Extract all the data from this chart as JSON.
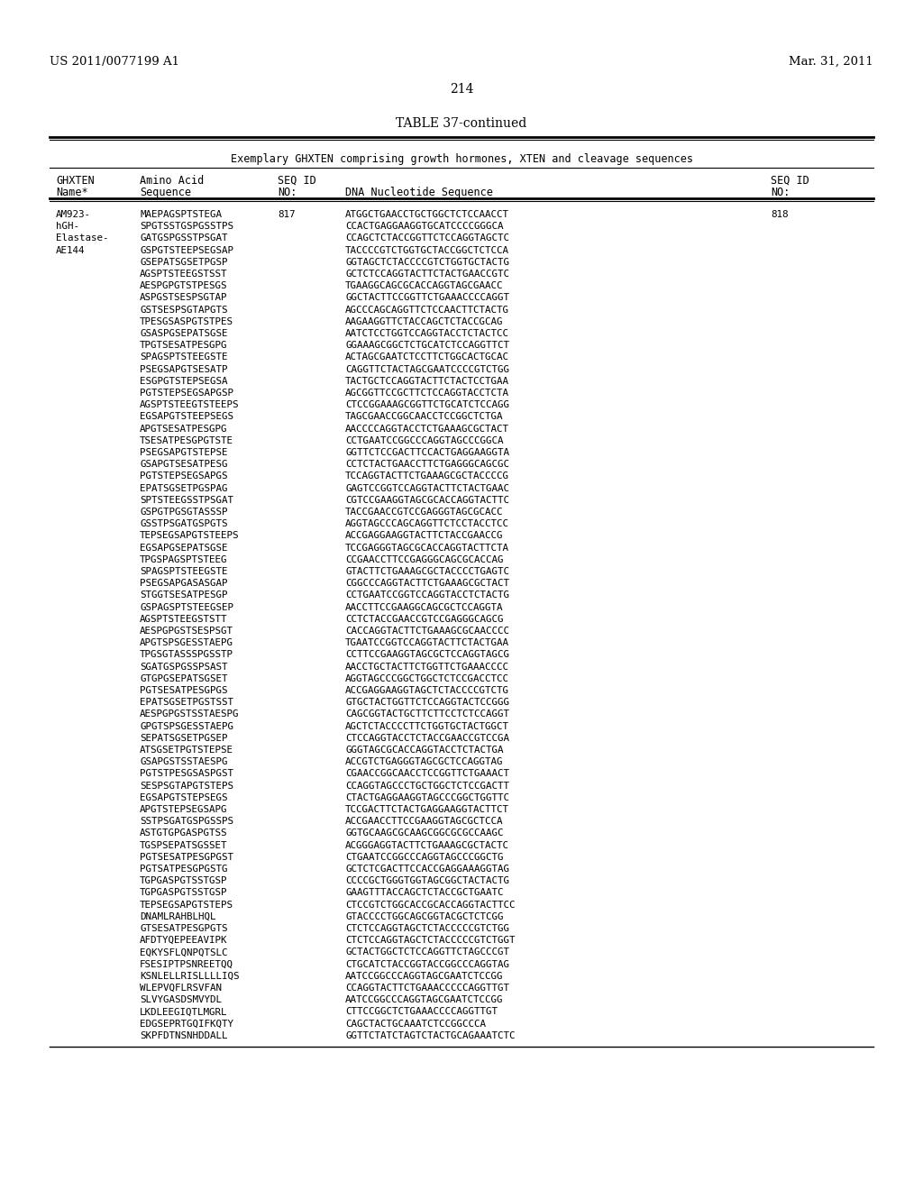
{
  "header_left": "US 2011/0077199 A1",
  "header_right": "Mar. 31, 2011",
  "page_number": "214",
  "table_title": "TABLE 37-continued",
  "table_subtitle": "Exemplary GHXTEN comprising growth hormones, XTEN and cleavage sequences",
  "col1_header1": "GHXTEN",
  "col1_header2": "Name*",
  "col2_header1": "Amino Acid",
  "col2_header2": "Sequence",
  "col3_header1": "SEQ ID",
  "col3_header2": "NO:",
  "col4_header1": "",
  "col4_header2": "DNA Nucleotide Sequence",
  "col5_header1": "SEQ ID",
  "col5_header2": "NO:",
  "entry_name_parts": [
    "AM923-",
    "hGH-",
    "Elastase-",
    "AE144"
  ],
  "seq_id_1": "817",
  "seq_id_2": "818",
  "rows": [
    [
      "MAEPAGSPTSTEGA",
      "817",
      "ATGGCTGAACCTGCTGGCTCTCCAACCT",
      "818"
    ],
    [
      "SPGTSSTGSPGSSTPS",
      "",
      "CCACTGAGGAAGGTGCATCCCCGGGCA",
      ""
    ],
    [
      "GATGSPGSSTPSGAT",
      "",
      "CCAGCTCTACCGGTTCTCCAGGTAGCTC",
      ""
    ],
    [
      "GSPGTSTEEPSEGSAP",
      "",
      "TACCCCGTCTGGTGCTACCGGCTCTCCA",
      ""
    ],
    [
      "GSEPATSGSETPGSP",
      "",
      "GGTAGCTCTACCCCGTCTGGTGCTACTG",
      ""
    ],
    [
      "AGSPTSTEEGSTSST",
      "",
      "GCTCTCCAGGTACTTCTACTGAACCGTC",
      ""
    ],
    [
      "AESPGPGTSTPESGS",
      "",
      "TGAAGGCAGCGCACCAGGTAGCGAACC",
      ""
    ],
    [
      "ASPGSTSESPSGTAP",
      "",
      "GGCTACTTCCGGTTCTGAAACCCCAGGT",
      ""
    ],
    [
      "GSTSESPSGTAPGTS",
      "",
      "AGCCCAGCAGGTTCTCCAACTTCTACTG",
      ""
    ],
    [
      "TPESGSASPGTSTPES",
      "",
      "AAGAAGGTTCTACCAGCTCTACCGCAG",
      ""
    ],
    [
      "GSASPGSEPATSGSE",
      "",
      "AATCTCCTGGTCCAGGTACCTCTACTCC",
      ""
    ],
    [
      "TPGTSESATPESGPG",
      "",
      "GGAAAGCGGCTCTGCATCTCCAGGTTCT",
      ""
    ],
    [
      "SPAGSPTSTEEGSTE",
      "",
      "ACTAGCGAATCTCCTTCTGGCACTGCAC",
      ""
    ],
    [
      "PSEGSAPGTSESATP",
      "",
      "CAGGTTCTACTAGCGAATCCCCGTCTGG",
      ""
    ],
    [
      "ESGPGTSTEPSEGSA",
      "",
      "TACTGCTCCAGGTACTTCTACTCCTGAA",
      ""
    ],
    [
      "PGTSTEPSEGSAPGSP",
      "",
      "AGCGGTTCCGCTTCTCCAGGTACCTCTA",
      ""
    ],
    [
      "AGSPTSTEEGTSTEEPS",
      "",
      "CTCCGGAAAGCGGTTCTGCATCTCCAGG",
      ""
    ],
    [
      "EGSAPGTSTEEPSEGS",
      "",
      "TAGCGAACCGGCAACCTCCGGCTCTGA",
      ""
    ],
    [
      "APGTSESATPESGPG",
      "",
      "AACCCCAGGTACCTCTGAAAGCGCTACT",
      ""
    ],
    [
      "TSESATPESGPGTSTE",
      "",
      "CCTGAATCCGGCCCAGGTAGCCCGGCA",
      ""
    ],
    [
      "PSEGSAPGTSTEPSE",
      "",
      "GGTTCTCCGACTTCCACTGAGGAAGGTA",
      ""
    ],
    [
      "GSAPGTSESATPESG",
      "",
      "CCTCTACTGAACCTTCTGAGGGCAGCGC",
      ""
    ],
    [
      "PGTSTEPSEGSAPGS",
      "",
      "TCCAGGTACTTCTGAAAGCGCTACCCCG",
      ""
    ],
    [
      "EPATSGSETPGSPAG",
      "",
      "GAGTCCGGTCCAGGTACTTCTACTGAAC",
      ""
    ],
    [
      "SPTSTEEGSSTPSGAT",
      "",
      "CGTCCGAAGGTAGCGCACCAGGTACTTC",
      ""
    ],
    [
      "GSPGTPGSGTASSSP",
      "",
      "TACCGAACCGTCCGAGGGTAGCGCACC",
      ""
    ],
    [
      "GSSTPSGATGSPGTS",
      "",
      "AGGTAGCCCAGCAGGTTCTCCTACCTCC",
      ""
    ],
    [
      "TEPSEGSAPGTSTEEPS",
      "",
      "ACCGAGGAAGGTACTTCTACCGAACCG",
      ""
    ],
    [
      "EGSAPGSEPATSGSE",
      "",
      "TCCGAGGGTAGCGCACCAGGTACTTCTA",
      ""
    ],
    [
      "TPGSPAGSPTSTEEG",
      "",
      "CCGAACCTTCCGAGGGCAGCGCACCAG",
      ""
    ],
    [
      "SPAGSPTSTEEGSTE",
      "",
      "GTACTTCTGAAAGCGCTACCCCTGAGTC",
      ""
    ],
    [
      "PSEGSAPGASASGAP",
      "",
      "CGGCCCAGGTACTTCTGAAAGCGCTACT",
      ""
    ],
    [
      "STGGTSESATPESGP",
      "",
      "CCTGAATCCGGTCCAGGTACCTCTACTG",
      ""
    ],
    [
      "GSPAGSPTSTEEGSEP",
      "",
      "AACCTTCCGAAGGCAGCGCTCCAGGTA",
      ""
    ],
    [
      "AGSPTSTEEGSTSTT",
      "",
      "CCTCTACCGAACCGTCCGAGGGCAGCG",
      ""
    ],
    [
      "AESPGPGSTSESPSGT",
      "",
      "CACCAGGTACTTCTGAAAGCGCAACCCC",
      ""
    ],
    [
      "APGTSPSGESSTAEPG",
      "",
      "TGAATCCGGTCCAGGTACTTCTACTGAA",
      ""
    ],
    [
      "TPGSGTASSSPGSSTP",
      "",
      "CCTTCCGAAGGTAGCGCTCCAGGTAGCG",
      ""
    ],
    [
      "SGATGSPGSSPSAST",
      "",
      "AACCTGCTACTTCTGGTTCTGAAACCCC",
      ""
    ],
    [
      "GTGPGSEPATSGSET",
      "",
      "AGGTAGCCCGGCTGGCTCTCCGACCTCC",
      ""
    ],
    [
      "PGTSESATPESGPGS",
      "",
      "ACCGAGGAAGGTAGCTCTACCCCGTCTG",
      ""
    ],
    [
      "EPATSGSETPGSTSST",
      "",
      "GTGCTACTGGTTCTCCAGGTACTCCGGG",
      ""
    ],
    [
      "AESPGPGSTSSTAESPG",
      "",
      "CAGCGGTACTGCTTCTTCCTCTCCAGGT",
      ""
    ],
    [
      "GPGTSPSGESSTAEPG",
      "",
      "AGCTCTACCCCTTCTGGTGCTACTGGCT",
      ""
    ],
    [
      "SEPATSGSETPGSEP",
      "",
      "CTCCAGGTACCTCTACCGAACCGTCCGA",
      ""
    ],
    [
      "ATSGSETPGTSTEPSE",
      "",
      "GGGTAGCGCACCAGGTACCTCTACTGA",
      ""
    ],
    [
      "GSAPGSTSSTAESPG",
      "",
      "ACCGTCTGAGGGTAGCGCTCCAGGTAG",
      ""
    ],
    [
      "PGTSTPESGSASPGST",
      "",
      "CGAACCGGCAACCTCCGGTTCTGAAACT",
      ""
    ],
    [
      "SESPSGTAPGTSTEPS",
      "",
      "CCAGGTAGCCCTGCTGGCTCTCCGACTT",
      ""
    ],
    [
      "EGSAPGTSTEPSEGS",
      "",
      "CTACTGAGGAAGGTAGCCCGGCTGGTTC",
      ""
    ],
    [
      "APGTSTEPSEGSAPG",
      "",
      "TCCGACTTCTACTGAGGAAGGTACTTCT",
      ""
    ],
    [
      "SSTPSGATGSPGSSPS",
      "",
      "ACCGAACCTTCCGAAGGTAGCGCTCCA",
      ""
    ],
    [
      "ASTGTGPGASPGTSS",
      "",
      "GGTGCAAGCGCAAGCGGCGCGCCAAGC",
      ""
    ],
    [
      "TGSPSEPATSGSSET",
      "",
      "ACGGGAGGTACTTCTGAAAGCGCTACTC",
      ""
    ],
    [
      "PGTSESATPESGPGST",
      "",
      "CTGAATCCGGCCCAGGTAGCCCGGCTG",
      ""
    ],
    [
      "PGTSATPESGPGSTG",
      "",
      "GCTCTCGACTTCCACCGAGGAAAGGTAG",
      ""
    ],
    [
      "TGPGASPGTSSTGSP",
      "",
      "CCCCGCTGGGTGGTAGCGGCTACTACTG",
      ""
    ],
    [
      "TGPGASPGTSSTGSP",
      "",
      "GAAGTTTACCAGCTCTACCGCTGAATC",
      ""
    ],
    [
      "TEPSEGSAPGTSTEPS",
      "",
      "CTCCGTCTGGCACCGCACCAGGTACTTCC",
      ""
    ],
    [
      "DNAMLRAHBLHQL",
      "",
      "GTACCCCTGGCAGCGGTACGCTCTCGG",
      ""
    ],
    [
      "GTSESATPESGPGTS",
      "",
      "CTCTCCAGGTAGCTCTACCCCCGTCTGG",
      ""
    ],
    [
      "AFDTYQEPEEAVIPK",
      "",
      "CTCTCCAGGTAGCTCTACCCCCGTCTGGT",
      ""
    ],
    [
      "EQKYSFLQNPQTSLC",
      "",
      "GCTACTGGCTCTCCAGGTTCTAGCCCGT",
      ""
    ],
    [
      "FSESIPTPSNREETQQ",
      "",
      "CTGCATCTACCGGTACCGGCCCAGGTAG",
      ""
    ],
    [
      "KSNLELLRISLLLLIQS",
      "",
      "AATCCGGCCCAGGTAGCGAATCTCCGG",
      ""
    ],
    [
      "WLEPVQFLRSVFAN",
      "",
      "CCAGGTACTTCTGAAACCCCCAGGTTGT",
      ""
    ],
    [
      "SLVYGASDSMVYDL",
      "",
      "AATCCGGCCCAGGTAGCGAATCTCCGG",
      ""
    ],
    [
      "LKDLEEGIQTLMGRL",
      "",
      "CTTCCGGCTCTGAAACCCCAGGTTGT",
      ""
    ],
    [
      "EDGSEPRTGQIFKQTY",
      "",
      "CAGCTACTGCAAATCTCCGGCCCA",
      ""
    ],
    [
      "SKPFDTNSNHDDALL",
      "",
      "GGTTCTATCTAGTCTACTGCAGAAATCTC",
      ""
    ]
  ],
  "background_color": "#ffffff",
  "text_color": "#000000"
}
